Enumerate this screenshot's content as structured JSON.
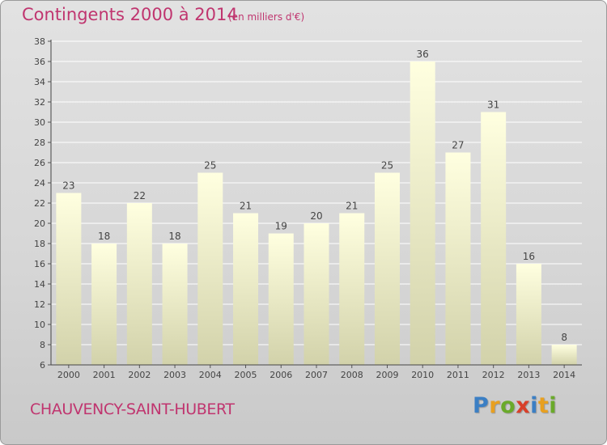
{
  "header": {
    "title": "Contingents 2000 à 2014",
    "subtitle": "(en milliers d'€)"
  },
  "footer": {
    "commune": "CHAUVENCY-SAINT-HUBERT",
    "logo_letters": [
      "P",
      "r",
      "o",
      "x",
      "i",
      "t",
      "i"
    ],
    "logo_colors": [
      "#3b7fc4",
      "#e8a020",
      "#6aaa2a",
      "#d8402a",
      "#3b7fc4",
      "#e8a020",
      "#6aaa2a"
    ]
  },
  "colors": {
    "title": "#c0356f",
    "bar_top": "#ffffe0",
    "bar_bottom": "#d2d2aa",
    "grid": "#ffffff"
  },
  "chart_data": {
    "type": "bar",
    "categories": [
      "2000",
      "2001",
      "2002",
      "2003",
      "2004",
      "2005",
      "2006",
      "2007",
      "2008",
      "2009",
      "2010",
      "2011",
      "2012",
      "2013",
      "2014"
    ],
    "values": [
      23,
      18,
      22,
      18,
      25,
      21,
      19,
      20,
      21,
      25,
      36,
      27,
      31,
      16,
      8
    ],
    "title": "Contingents 2000 à 2014",
    "xlabel": "",
    "ylabel": "",
    "ylim": [
      6,
      38
    ],
    "yticks": [
      6,
      8,
      10,
      12,
      14,
      16,
      18,
      20,
      22,
      24,
      26,
      28,
      30,
      32,
      34,
      36,
      38
    ],
    "grid": true,
    "data_labels": true
  }
}
